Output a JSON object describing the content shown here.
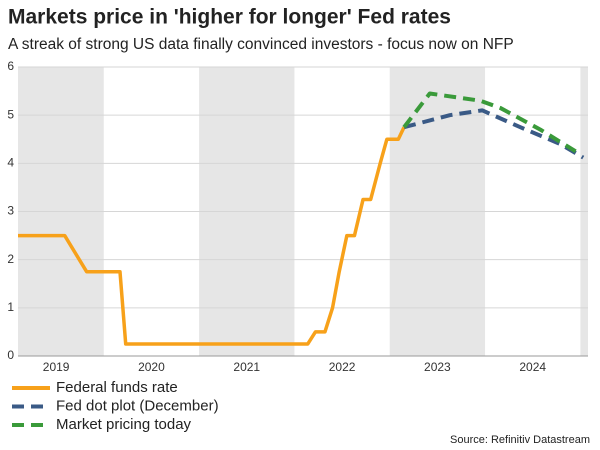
{
  "chart_data": {
    "type": "line",
    "title": "Markets price in 'higher for longer' Fed rates",
    "subtitle": "A streak of strong US data finally convinced investors - focus now on NFP",
    "source": "Source: Refinitiv Datastream",
    "xlim": [
      2019.1,
      2025.08
    ],
    "xticks": [
      {
        "value": 2019.5,
        "label": "2019"
      },
      {
        "value": 2020.5,
        "label": "2020"
      },
      {
        "value": 2021.5,
        "label": "2021"
      },
      {
        "value": 2022.5,
        "label": "2022"
      },
      {
        "value": 2023.5,
        "label": "2023"
      },
      {
        "value": 2024.5,
        "label": "2024"
      }
    ],
    "ylim": [
      0,
      6
    ],
    "yticks": [
      0,
      1,
      2,
      3,
      4,
      5,
      6
    ],
    "grid": true,
    "series": [
      {
        "name": "Federal funds rate",
        "color": "#f7a11a",
        "style": "solid",
        "x": [
          2019.1,
          2019.59,
          2019.82,
          2020.17,
          2020.23,
          2022.14,
          2022.22,
          2022.32,
          2022.4,
          2022.47,
          2022.55,
          2022.63,
          2022.72,
          2022.8,
          2022.9,
          2022.97,
          2023.09,
          2023.15
        ],
        "values": [
          2.5,
          2.5,
          1.75,
          1.75,
          0.25,
          0.25,
          0.5,
          0.5,
          1,
          1.75,
          2.5,
          2.5,
          3.25,
          3.25,
          4,
          4.5,
          4.5,
          4.75
        ]
      },
      {
        "name": "Fed dot plot (December)",
        "color": "#3a5a86",
        "style": "dashed",
        "x": [
          2023.15,
          2023.63,
          2023.97,
          2024.37,
          2024.79,
          2025.03
        ],
        "values": [
          4.75,
          5.0,
          5.1,
          4.75,
          4.4,
          4.12
        ]
      },
      {
        "name": "Market pricing today",
        "color": "#3a9a3a",
        "style": "dashed",
        "x": [
          2023.15,
          2023.42,
          2023.95,
          2024.16,
          2024.58,
          2024.95
        ],
        "values": [
          4.75,
          5.45,
          5.3,
          5.15,
          4.7,
          4.25
        ]
      }
    ]
  }
}
